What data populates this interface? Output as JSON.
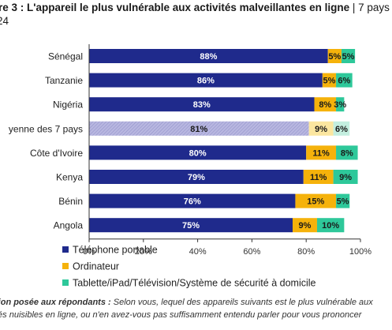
{
  "title": {
    "bold": "re 3 : L'appareil le plus vulnérable aux activités malveillantes en ligne",
    "rest": " | 7 pays",
    "line2": "24"
  },
  "note": {
    "label": "tion posée aux répondants :",
    "text": " Selon vous, lequel des appareils suivants est le plus vulnérable aux",
    "line2": "tés nuisibles en ligne, ou n'en avez-vous pas suffisamment entendu parler pour vous prononcer"
  },
  "colors": {
    "phone": "#1f2a8c",
    "phone_avg": "#a9a8d9",
    "computer": "#f5b20b",
    "computer_avg": "#fbe6a0",
    "tablet": "#2ec89a",
    "tablet_avg": "#c3eedf",
    "grid": "#d9d9d9",
    "axis": "#333333"
  },
  "chart_data": {
    "type": "bar",
    "orientation": "horizontal",
    "stacked": true,
    "categories": [
      "Sénégal",
      "Tanzanie",
      "Nigéria",
      "yenne des 7 pays",
      "Côte d'Ivoire",
      "Kenya",
      "Bénin",
      "Angola"
    ],
    "highlighted_category": "yenne des 7 pays",
    "series": [
      {
        "name": "Téléphone portable",
        "values": [
          88,
          86,
          83,
          81,
          80,
          79,
          76,
          75
        ]
      },
      {
        "name": "Ordinateur",
        "values": [
          5,
          5,
          8,
          9,
          11,
          11,
          15,
          9
        ]
      },
      {
        "name": "Tablette/iPad/Télévision/Système de sécurité à domicile",
        "values": [
          5,
          6,
          3,
          6,
          8,
          9,
          5,
          10
        ]
      }
    ],
    "xlim": [
      0,
      100
    ],
    "xticks": [
      "0%",
      "20%",
      "40%",
      "60%",
      "80%",
      "100%"
    ],
    "grid": false,
    "legend_position": "bottom"
  }
}
